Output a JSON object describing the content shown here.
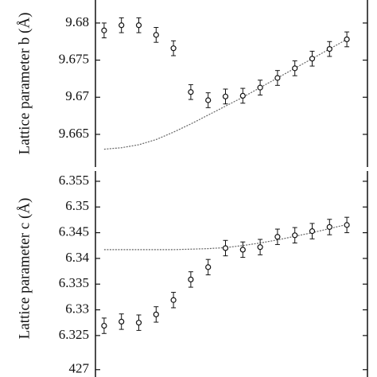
{
  "chart_data": [
    {
      "type": "scatter",
      "ylabel": "Lattice parameter b (Å)",
      "categories": [
        null,
        null,
        null,
        null,
        null,
        null,
        null,
        null,
        null,
        null,
        null,
        null,
        null,
        null,
        null
      ],
      "values": [
        9.679,
        9.6797,
        9.6797,
        9.6784,
        9.6766,
        9.6707,
        9.6696,
        9.6701,
        9.6702,
        9.6713,
        9.6726,
        9.6739,
        9.6752,
        9.6765,
        9.6778
      ],
      "errors": [
        0.001,
        0.001,
        0.001,
        0.001,
        0.001,
        0.001,
        0.001,
        0.001,
        0.001,
        0.001,
        0.001,
        0.001,
        0.001,
        0.001,
        0.001
      ],
      "fit_values": [
        9.663,
        9.6632,
        9.6636,
        9.6643,
        9.6653,
        9.6664,
        9.6676,
        9.6688,
        9.67,
        9.6713,
        9.6726,
        9.6739,
        9.6752,
        9.6765,
        9.6778
      ],
      "color": "#111111",
      "fit_color": "#666666",
      "ylim": [
        9.6606,
        9.6831
      ],
      "yticks": [
        9.665,
        9.67,
        9.675,
        9.68
      ]
    },
    {
      "type": "scatter",
      "ylabel": "Lattice parameter c (Å)",
      "categories": [
        null,
        null,
        null,
        null,
        null,
        null,
        null,
        null,
        null,
        null,
        null,
        null,
        null,
        null,
        null
      ],
      "values": [
        6.3269,
        6.3277,
        6.3275,
        6.3291,
        6.3319,
        6.3359,
        6.3383,
        6.342,
        6.3417,
        6.3422,
        6.3442,
        6.3445,
        6.3453,
        6.3461,
        6.3465
      ],
      "errors": [
        0.0015,
        0.0015,
        0.0015,
        0.0015,
        0.0015,
        0.0015,
        0.0015,
        0.0015,
        0.0015,
        0.0015,
        0.0015,
        0.0015,
        0.0015,
        0.0015,
        0.0015
      ],
      "fit_values": [
        6.3417,
        6.3417,
        6.3417,
        6.3417,
        6.3417,
        6.3418,
        6.3419,
        6.3421,
        6.3425,
        6.343,
        6.3436,
        6.3443,
        6.345,
        6.3458,
        6.3466
      ],
      "color": "#111111",
      "fit_color": "#666666",
      "ylim": [
        6.3191,
        6.357
      ],
      "yticks": [
        6.325,
        6.33,
        6.335,
        6.34,
        6.345,
        6.35,
        6.355
      ]
    },
    {
      "type": "scatter",
      "ylim": [
        426,
        427.05
      ],
      "yticks": [
        427
      ]
    }
  ]
}
